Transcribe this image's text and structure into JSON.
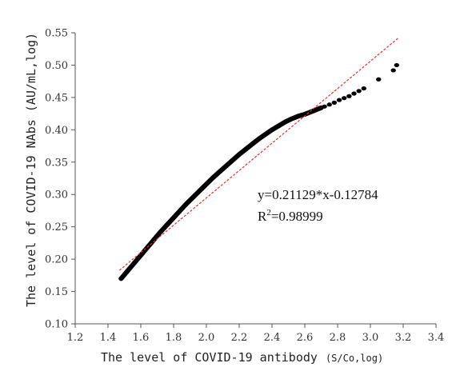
{
  "chart_data": {
    "type": "scatter",
    "title": "",
    "xlabel": "The level of COVID-19 antibody",
    "xlabel_unit": "(S/Co,log)",
    "ylabel": "The level of COVID-19 NAbs (AU/mL,log)",
    "xlim": [
      1.2,
      3.4
    ],
    "ylim": [
      0.1,
      0.55
    ],
    "x_ticks": [
      "1.2",
      "1.4",
      "1.6",
      "1.8",
      "2.0",
      "2.2",
      "2.4",
      "2.6",
      "2.8",
      "3.0",
      "3.2",
      "3.4"
    ],
    "y_ticks": [
      "0.10",
      "0.15",
      "0.20",
      "0.25",
      "0.30",
      "0.35",
      "0.40",
      "0.45",
      "0.50",
      "0.55"
    ],
    "grid": false,
    "series": [
      {
        "marker": "black-dot",
        "x": [
          1.48,
          1.52,
          1.56,
          1.6,
          1.64,
          1.68,
          1.72,
          1.76,
          1.8,
          1.84,
          1.88,
          1.92,
          1.96,
          2.0,
          2.04,
          2.08,
          2.12,
          2.16,
          2.2,
          2.24,
          2.28,
          2.32,
          2.36,
          2.4,
          2.44,
          2.48,
          2.52,
          2.56,
          2.6,
          2.62,
          2.64,
          2.66,
          2.68,
          2.7,
          2.72,
          2.75,
          2.78,
          2.81,
          2.84,
          2.87,
          2.9,
          2.93,
          2.96,
          3.05,
          3.14,
          3.16
        ],
        "y": [
          0.17,
          0.182,
          0.194,
          0.206,
          0.218,
          0.23,
          0.242,
          0.253,
          0.264,
          0.275,
          0.286,
          0.296,
          0.306,
          0.316,
          0.326,
          0.335,
          0.344,
          0.353,
          0.362,
          0.37,
          0.378,
          0.386,
          0.393,
          0.4,
          0.406,
          0.412,
          0.417,
          0.421,
          0.424,
          0.426,
          0.428,
          0.43,
          0.432,
          0.434,
          0.436,
          0.439,
          0.442,
          0.446,
          0.449,
          0.452,
          0.456,
          0.46,
          0.464,
          0.478,
          0.492,
          0.5
        ]
      }
    ],
    "fit_line": {
      "style": "dashed",
      "color": "#e03030",
      "slope": 0.21129,
      "intercept": -0.12784,
      "x_range": [
        1.47,
        3.17
      ]
    },
    "annotations": {
      "equation": "y=0.21129*x-0.12784",
      "r_squared_prefix": "R",
      "r_squared_sup": "2",
      "r_squared_value": "=0.98999"
    }
  }
}
